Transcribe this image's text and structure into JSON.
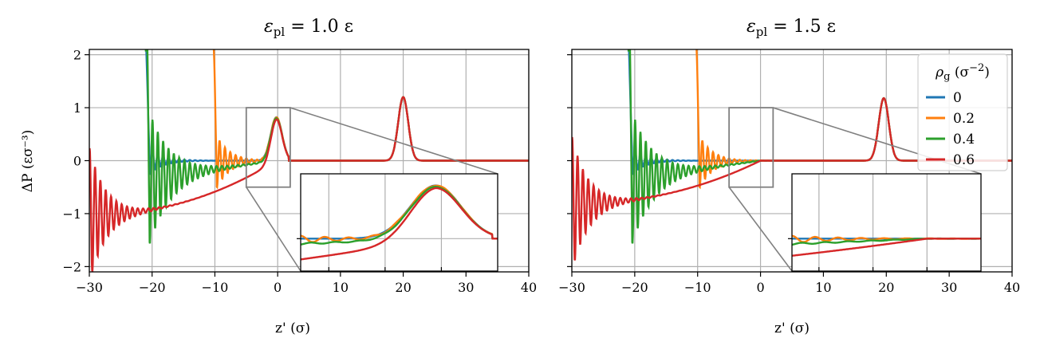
{
  "chart_data": [
    {
      "type": "line",
      "title_prefix": "ε",
      "title_sub": "pl",
      "title_suffix": " = 1.0 ε",
      "xlabel": "z' (σ)",
      "ylabel": "ΔP (εσ⁻³)",
      "xlim": [
        -30,
        40
      ],
      "ylim": [
        -2.1,
        2.1
      ],
      "xticks": [
        -30,
        -20,
        -10,
        0,
        10,
        20,
        30,
        40
      ],
      "yticks": [
        -2,
        -1,
        0,
        1,
        2
      ],
      "xticklabels": [
        "−30",
        "−20",
        "−10",
        "0",
        "10",
        "20",
        "30",
        "40"
      ],
      "yticklabels": [
        "−2",
        "−1",
        "0",
        "1",
        "2"
      ],
      "grid": true,
      "zoom_box": {
        "x": [
          -5,
          2
        ],
        "y": [
          -0.5,
          1.0
        ]
      },
      "series": [
        {
          "name": "0",
          "color": "#1f77b4",
          "start": -21,
          "osc_amp": 0.34,
          "decay": 2.1,
          "floor": 0.0,
          "peak_height": 0.82
        },
        {
          "name": "0.2",
          "color": "#ff7f0e",
          "start": -10.3,
          "osc_amp": 0.66,
          "decay": 2.1,
          "floor": -0.02,
          "peak_height": 0.82
        },
        {
          "name": "0.4",
          "color": "#2ca02c",
          "start": -21,
          "osc_amp": 1.5,
          "decay": 3.4,
          "floor": -0.34,
          "peak_height": 0.8
        },
        {
          "name": "0.6",
          "color": "#d62728",
          "start": -31,
          "osc_amp": 1.9,
          "decay": 2.6,
          "floor": -1.03,
          "peak_height": 0.78
        }
      ],
      "right_peak": {
        "center": 20,
        "height": 1.2,
        "width": 0.8
      },
      "main_peak": {
        "center": -0.2,
        "width": 0.9
      }
    },
    {
      "type": "line",
      "title_prefix": "ε",
      "title_sub": "pl",
      "title_suffix": " = 1.5 ε",
      "xlabel": "z' (σ)",
      "ylabel": "",
      "xlim": [
        -30,
        40
      ],
      "ylim": [
        -2.1,
        2.1
      ],
      "xticks": [
        -30,
        -20,
        -10,
        0,
        10,
        20,
        30,
        40
      ],
      "yticks": [
        -2,
        -1,
        0,
        1,
        2
      ],
      "xticklabels": [
        "−30",
        "−20",
        "−10",
        "0",
        "10",
        "20",
        "30",
        "40"
      ],
      "yticklabels": [],
      "grid": true,
      "zoom_box": {
        "x": [
          -5,
          2
        ],
        "y": [
          -0.5,
          1.0
        ]
      },
      "series": [
        {
          "name": "0",
          "color": "#1f77b4",
          "start": -21,
          "osc_amp": 0.34,
          "decay": 2.1,
          "floor": 0.0,
          "peak_height": 0.0
        },
        {
          "name": "0.2",
          "color": "#ff7f0e",
          "start": -10.3,
          "osc_amp": 0.66,
          "decay": 2.1,
          "floor": -0.02,
          "peak_height": 0.0
        },
        {
          "name": "0.4",
          "color": "#2ca02c",
          "start": -21,
          "osc_amp": 1.5,
          "decay": 3.4,
          "floor": -0.34,
          "peak_height": 0.0
        },
        {
          "name": "0.6",
          "color": "#d62728",
          "start": -31,
          "osc_amp": 1.9,
          "decay": 2.6,
          "floor": -0.82,
          "peak_height": 0.0
        }
      ],
      "right_peak": {
        "center": 19.6,
        "height": 1.18,
        "width": 0.8
      },
      "main_peak": {
        "center": 0,
        "width": 0.9
      },
      "legend": {
        "title_prefix": "ρ",
        "title_sub": "g",
        "title_suffix": " (σ",
        "title_sup": "−2",
        "title_close": ")",
        "placement": "top-right"
      }
    }
  ]
}
